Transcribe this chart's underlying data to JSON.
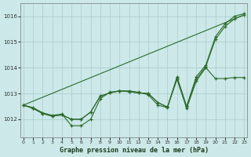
{
  "title": "Graphe pression niveau de la mer (hPa)",
  "bg_color": "#cce8e8",
  "grid_color": "#aacccc",
  "line_color": "#2d6b2d",
  "x_ticks": [
    0,
    1,
    2,
    3,
    4,
    5,
    6,
    7,
    8,
    9,
    10,
    11,
    12,
    13,
    14,
    15,
    16,
    17,
    18,
    19,
    20,
    21,
    22,
    23
  ],
  "y_ticks": [
    1012,
    1013,
    1014,
    1015,
    1016
  ],
  "xlim": [
    -0.3,
    23.3
  ],
  "ylim": [
    1011.3,
    1016.5
  ],
  "series": [
    {
      "x": [
        0,
        1,
        2,
        3,
        4,
        5,
        6,
        7,
        8,
        9,
        10,
        11,
        12,
        13,
        14,
        15,
        16,
        17,
        18,
        19,
        20,
        21,
        22,
        23
      ],
      "y": [
        1012.55,
        1012.45,
        1012.25,
        1012.15,
        1012.2,
        1011.75,
        1011.75,
        1012.0,
        1012.8,
        1013.05,
        1013.1,
        1013.1,
        1013.05,
        1012.95,
        1012.55,
        1012.45,
        1013.65,
        1012.5,
        1013.65,
        1014.1,
        1015.2,
        1015.7,
        1016.0,
        1016.1
      ],
      "has_markers": true
    },
    {
      "x": [
        0,
        1,
        2,
        3,
        4,
        5,
        6,
        7,
        8,
        9,
        10,
        11,
        12,
        13,
        14,
        15,
        16,
        17,
        18,
        19,
        20,
        21,
        22,
        23
      ],
      "y": [
        1012.55,
        1012.42,
        1012.22,
        1012.12,
        1012.17,
        1012.0,
        1012.0,
        1012.28,
        1012.9,
        1013.02,
        1013.1,
        1013.07,
        1013.02,
        1013.0,
        1012.65,
        1012.47,
        1013.6,
        1012.47,
        1013.55,
        1014.05,
        1015.1,
        1015.6,
        1015.9,
        1016.05
      ],
      "has_markers": true
    },
    {
      "x": [
        0,
        23
      ],
      "y": [
        1012.55,
        1016.05
      ],
      "has_markers": false
    },
    {
      "x": [
        0,
        1,
        2,
        3,
        4,
        5,
        6,
        7,
        8,
        9,
        10,
        11,
        12,
        13,
        14,
        15,
        16,
        17,
        18,
        19,
        20,
        21,
        22,
        23
      ],
      "y": [
        1012.55,
        1012.42,
        1012.22,
        1012.12,
        1012.17,
        1012.0,
        1012.0,
        1012.28,
        1012.9,
        1013.02,
        1013.1,
        1013.07,
        1013.02,
        1013.0,
        1012.65,
        1012.47,
        1013.55,
        1012.42,
        1013.48,
        1014.0,
        1013.58,
        1013.58,
        1013.62,
        1013.62
      ],
      "has_markers": true
    }
  ]
}
